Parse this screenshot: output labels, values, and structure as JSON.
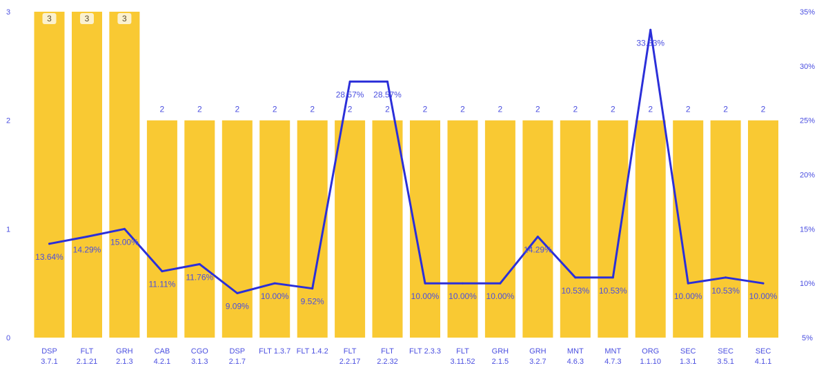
{
  "chart_data": {
    "type": "bar",
    "categories": [
      [
        "DSP",
        "3.7.1"
      ],
      [
        "FLT",
        "2.1.21"
      ],
      [
        "GRH",
        "2.1.3"
      ],
      [
        "CAB",
        "4.2.1"
      ],
      [
        "CGO",
        "3.1.3"
      ],
      [
        "DSP",
        "2.1.7"
      ],
      [
        "FLT 1.3.7"
      ],
      [
        "FLT 1.4.2"
      ],
      [
        "FLT",
        "2.2.17"
      ],
      [
        "FLT",
        "2.2.32"
      ],
      [
        "FLT 2.3.3"
      ],
      [
        "FLT",
        "3.11.52"
      ],
      [
        "GRH",
        "2.1.5"
      ],
      [
        "GRH",
        "3.2.7"
      ],
      [
        "MNT",
        "4.6.3"
      ],
      [
        "MNT",
        "4.7.3"
      ],
      [
        "ORG",
        "1.1.10"
      ],
      [
        "SEC",
        "1.3.1"
      ],
      [
        "SEC",
        "3.5.1"
      ],
      [
        "SEC",
        "4.1.1"
      ]
    ],
    "series": [
      {
        "type": "bar",
        "axis": "left",
        "values": [
          3,
          3,
          3,
          2,
          2,
          2,
          2,
          2,
          2,
          2,
          2,
          2,
          2,
          2,
          2,
          2,
          2,
          2,
          2,
          2
        ],
        "labels": [
          "3",
          "3",
          "3",
          "2",
          "2",
          "2",
          "2",
          "2",
          "2",
          "2",
          "2",
          "2",
          "2",
          "2",
          "2",
          "2",
          "2",
          "2",
          "2",
          "2"
        ],
        "color": "#f9c933"
      },
      {
        "type": "line",
        "axis": "right",
        "values": [
          13.64,
          14.29,
          15.0,
          11.11,
          11.76,
          9.09,
          10.0,
          9.52,
          28.57,
          28.57,
          10.0,
          10.0,
          10.0,
          14.29,
          10.53,
          10.53,
          33.33,
          10.0,
          10.53,
          10.0
        ],
        "labels": [
          "13.64%",
          "14.29%",
          "15.00%",
          "11.11%",
          "11.76%",
          "9.09%",
          "10.00%",
          "9.52%",
          "28.57%",
          "28.57%",
          "10.00%",
          "10.00%",
          "10.00%",
          "14.29%",
          "10.53%",
          "10.53%",
          "33.33%",
          "10.00%",
          "10.53%",
          "10.00%"
        ],
        "color": "#2b2fd9"
      }
    ],
    "left_axis": {
      "ticks": [
        "0",
        "1",
        "2",
        "3"
      ],
      "ylim": [
        0,
        3
      ]
    },
    "right_axis": {
      "ticks": [
        "5%",
        "10%",
        "15%",
        "20%",
        "25%",
        "30%",
        "35%"
      ],
      "ylim": [
        5,
        35
      ]
    },
    "grid": false,
    "legend": "none",
    "colors": {
      "bar": "#f9c933",
      "line": "#2b2fd9",
      "text": "#4a4ee0",
      "badge": "#fbf1cf"
    }
  }
}
